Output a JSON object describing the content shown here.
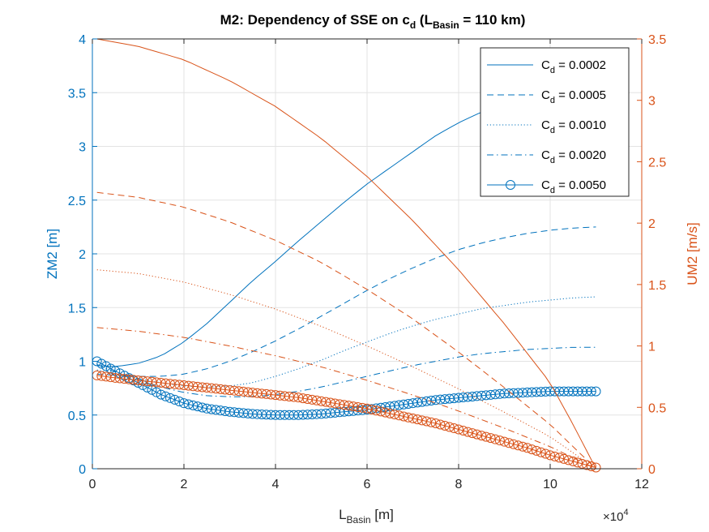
{
  "chart_data": {
    "type": "line",
    "title": {
      "prefix": "M2: Dependency of SSE on c",
      "sub": "d",
      "mid": " (L",
      "sub2": "Basin",
      "suffix": " = 110 km)"
    },
    "xlabel": {
      "main": "L",
      "sub": "Basin",
      "unit": " [m]"
    },
    "x_exponent": {
      "base": "×10",
      "power": "4"
    },
    "ylabel_left": "ZM2 [m]",
    "ylabel_right": "UM2 [m/s]",
    "xlim": [
      0,
      120000
    ],
    "ylim_left": [
      0,
      4
    ],
    "ylim_right": [
      0,
      3.5
    ],
    "x_ticks": [
      0,
      20000,
      40000,
      60000,
      80000,
      100000,
      120000
    ],
    "x_tick_labels": [
      "0",
      "2",
      "4",
      "6",
      "8",
      "10",
      "12"
    ],
    "y_left_ticks": [
      0,
      0.5,
      1,
      1.5,
      2,
      2.5,
      3,
      3.5,
      4
    ],
    "y_left_tick_labels": [
      "0",
      "0.5",
      "1",
      "1.5",
      "2",
      "2.5",
      "3",
      "3.5",
      "4"
    ],
    "y_right_ticks": [
      0,
      0.5,
      1,
      1.5,
      2,
      2.5,
      3,
      3.5
    ],
    "y_right_tick_labels": [
      "0",
      "0.5",
      "1",
      "1.5",
      "2",
      "2.5",
      "3",
      "3.5"
    ],
    "grid": true,
    "legend_placement": "top-right",
    "colors": {
      "zeta": "#0072BD",
      "u": "#D95319"
    },
    "zeta_series": [
      {
        "legend_main": "C",
        "legend_sub": "d",
        "legend_value": " = 0.0002",
        "style": "solid",
        "x": [
          0,
          5000,
          10000,
          15000,
          20000,
          25000,
          30000,
          35000,
          40000,
          45000,
          50000,
          55000,
          60000,
          65000,
          70000,
          75000,
          80000,
          85000,
          90000,
          95000,
          100000,
          105000,
          110000
        ],
        "values": [
          0.96,
          0.95,
          0.98,
          1.05,
          1.18,
          1.35,
          1.55,
          1.75,
          1.93,
          2.12,
          2.3,
          2.48,
          2.65,
          2.8,
          2.95,
          3.1,
          3.22,
          3.32,
          3.4,
          3.47,
          3.52,
          3.55,
          3.56
        ]
      },
      {
        "legend_main": "C",
        "legend_sub": "d",
        "legend_value": " = 0.0005",
        "style": "dashed",
        "x": [
          0,
          5000,
          10000,
          15000,
          20000,
          25000,
          30000,
          35000,
          40000,
          45000,
          50000,
          55000,
          60000,
          65000,
          70000,
          75000,
          80000,
          85000,
          90000,
          95000,
          100000,
          105000,
          110000
        ],
        "values": [
          0.88,
          0.87,
          0.86,
          0.86,
          0.88,
          0.93,
          1.0,
          1.09,
          1.19,
          1.3,
          1.42,
          1.54,
          1.66,
          1.77,
          1.87,
          1.96,
          2.04,
          2.1,
          2.15,
          2.19,
          2.22,
          2.24,
          2.25
        ]
      },
      {
        "legend_main": "C",
        "legend_sub": "d",
        "legend_value": " = 0.0010",
        "style": "dotted",
        "x": [
          0,
          5000,
          10000,
          15000,
          20000,
          25000,
          30000,
          35000,
          40000,
          45000,
          50000,
          55000,
          60000,
          65000,
          70000,
          75000,
          80000,
          85000,
          90000,
          95000,
          100000,
          105000,
          110000
        ],
        "values": [
          0.92,
          0.88,
          0.84,
          0.8,
          0.77,
          0.76,
          0.77,
          0.8,
          0.86,
          0.93,
          1.01,
          1.1,
          1.18,
          1.26,
          1.33,
          1.39,
          1.44,
          1.49,
          1.52,
          1.55,
          1.57,
          1.59,
          1.6
        ]
      },
      {
        "legend_main": "C",
        "legend_sub": "d",
        "legend_value": " = 0.0020",
        "style": "dashdot",
        "x": [
          0,
          5000,
          10000,
          15000,
          20000,
          25000,
          30000,
          35000,
          40000,
          45000,
          50000,
          55000,
          60000,
          65000,
          70000,
          75000,
          80000,
          85000,
          90000,
          95000,
          100000,
          105000,
          110000
        ],
        "values": [
          0.97,
          0.9,
          0.83,
          0.76,
          0.71,
          0.68,
          0.67,
          0.67,
          0.69,
          0.72,
          0.76,
          0.81,
          0.86,
          0.91,
          0.96,
          1.0,
          1.04,
          1.07,
          1.09,
          1.11,
          1.12,
          1.13,
          1.13
        ]
      },
      {
        "legend_main": "C",
        "legend_sub": "d",
        "legend_value": " = 0.0050",
        "style": "circles",
        "x": [
          0,
          5000,
          10000,
          15000,
          20000,
          25000,
          30000,
          35000,
          40000,
          45000,
          50000,
          55000,
          60000,
          65000,
          70000,
          75000,
          80000,
          85000,
          90000,
          95000,
          100000,
          105000,
          110000
        ],
        "values": [
          1.0,
          0.91,
          0.8,
          0.69,
          0.61,
          0.56,
          0.53,
          0.51,
          0.5,
          0.5,
          0.51,
          0.53,
          0.55,
          0.58,
          0.61,
          0.64,
          0.66,
          0.68,
          0.7,
          0.71,
          0.72,
          0.72,
          0.72
        ]
      }
    ],
    "u_series": [
      {
        "style": "solid",
        "x": [
          0,
          10000,
          20000,
          30000,
          40000,
          50000,
          60000,
          70000,
          80000,
          90000,
          100000,
          105000,
          110000
        ],
        "values": [
          3.5,
          3.44,
          3.33,
          3.16,
          2.95,
          2.69,
          2.38,
          2.02,
          1.62,
          1.18,
          0.7,
          0.36,
          0.0
        ]
      },
      {
        "style": "dashed",
        "x": [
          0,
          10000,
          20000,
          30000,
          40000,
          50000,
          60000,
          70000,
          80000,
          90000,
          100000,
          105000,
          110000
        ],
        "values": [
          2.25,
          2.21,
          2.13,
          2.01,
          1.86,
          1.68,
          1.46,
          1.22,
          0.95,
          0.66,
          0.36,
          0.18,
          0.0
        ]
      },
      {
        "style": "dotted",
        "x": [
          0,
          10000,
          20000,
          30000,
          40000,
          50000,
          60000,
          70000,
          80000,
          90000,
          100000,
          105000,
          110000
        ],
        "values": [
          1.62,
          1.59,
          1.52,
          1.42,
          1.3,
          1.16,
          1.0,
          0.83,
          0.65,
          0.46,
          0.26,
          0.13,
          0.0
        ]
      },
      {
        "style": "dashdot",
        "x": [
          0,
          10000,
          20000,
          30000,
          40000,
          50000,
          60000,
          70000,
          80000,
          90000,
          100000,
          105000,
          110000
        ],
        "values": [
          1.15,
          1.12,
          1.07,
          1.0,
          0.92,
          0.83,
          0.72,
          0.6,
          0.47,
          0.33,
          0.18,
          0.09,
          0.0
        ]
      },
      {
        "style": "circles",
        "x": [
          0,
          5000,
          10000,
          15000,
          20000,
          25000,
          30000,
          35000,
          40000,
          45000,
          50000,
          55000,
          60000,
          65000,
          70000,
          75000,
          80000,
          85000,
          90000,
          95000,
          100000,
          105000,
          110000
        ],
        "values": [
          0.76,
          0.74,
          0.72,
          0.7,
          0.68,
          0.66,
          0.64,
          0.62,
          0.6,
          0.58,
          0.55,
          0.52,
          0.49,
          0.45,
          0.41,
          0.37,
          0.32,
          0.27,
          0.22,
          0.17,
          0.11,
          0.06,
          0.01
        ]
      }
    ]
  }
}
